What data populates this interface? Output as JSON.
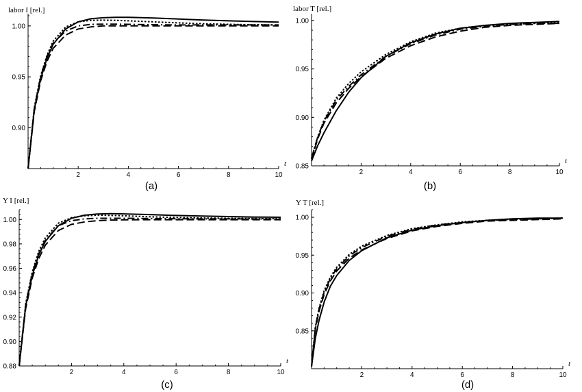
{
  "chart_data": [
    {
      "type": "line",
      "caption": "(a)",
      "ylabel": "labor  I [rel.]",
      "xlabel": "t",
      "xlim": [
        0,
        10
      ],
      "ylim": [
        0.86,
        1.012
      ],
      "xticks": [
        2,
        4,
        6,
        8,
        10
      ],
      "yticks": [
        0.9,
        0.95,
        1.0
      ],
      "ytick_labels": [
        "0.90",
        "0.95",
        "1.00"
      ],
      "x": [
        0,
        0.25,
        0.5,
        0.75,
        1,
        1.5,
        2,
        2.5,
        3,
        3.5,
        4,
        5,
        6,
        7,
        8,
        9,
        10
      ],
      "series": [
        {
          "style": "solid",
          "values": [
            0.86,
            0.918,
            0.948,
            0.968,
            0.982,
            0.997,
            1.004,
            1.007,
            1.008,
            1.0085,
            1.0085,
            1.0078,
            1.0068,
            1.0058,
            1.005,
            1.0043,
            1.0038
          ]
        },
        {
          "style": "dotted",
          "values": [
            0.86,
            0.92,
            0.951,
            0.971,
            0.985,
            0.999,
            1.004,
            1.0055,
            1.0057,
            1.0055,
            1.005,
            1.004,
            1.003,
            1.0022,
            1.0016,
            1.0012,
            1.001
          ]
        },
        {
          "style": "dashed",
          "values": [
            0.86,
            0.916,
            0.946,
            0.965,
            0.978,
            0.991,
            0.997,
            0.999,
            1.0,
            1.0,
            1.0,
            1.0,
            1.0,
            1.0,
            1.0,
            1.0,
            1.0
          ]
        },
        {
          "style": "dashdot",
          "values": [
            0.86,
            0.919,
            0.95,
            0.97,
            0.983,
            0.995,
            1.0,
            1.0015,
            1.0018,
            1.0018,
            1.0016,
            1.0012,
            1.001,
            1.001,
            1.001,
            1.001,
            1.001
          ]
        }
      ]
    },
    {
      "type": "line",
      "caption": "(b)",
      "ylabel": "labor  T [rel.]",
      "xlabel": "t",
      "xlim": [
        0,
        10
      ],
      "ylim": [
        0.85,
        1.007
      ],
      "xticks": [
        2,
        4,
        6,
        8,
        10
      ],
      "yticks": [
        0.85,
        0.9,
        0.95,
        1.0
      ],
      "ytick_labels": [
        "0.85",
        "0.90",
        "0.95",
        "1.00"
      ],
      "x": [
        0,
        0.25,
        0.5,
        1,
        1.5,
        2,
        3,
        4,
        5,
        6,
        7,
        8,
        9,
        10
      ],
      "series": [
        {
          "style": "solid",
          "values": [
            0.855,
            0.871,
            0.884,
            0.907,
            0.926,
            0.941,
            0.963,
            0.977,
            0.986,
            0.992,
            0.995,
            0.997,
            0.998,
            0.999
          ]
        },
        {
          "style": "dotted",
          "values": [
            0.858,
            0.88,
            0.897,
            0.92,
            0.935,
            0.947,
            0.965,
            0.978,
            0.987,
            0.992,
            0.995,
            0.996,
            0.997,
            0.998
          ]
        },
        {
          "style": "dashed",
          "values": [
            0.857,
            0.878,
            0.894,
            0.915,
            0.93,
            0.942,
            0.961,
            0.974,
            0.983,
            0.989,
            0.993,
            0.995,
            0.996,
            0.997
          ]
        },
        {
          "style": "dashdot",
          "values": [
            0.858,
            0.88,
            0.896,
            0.918,
            0.932,
            0.944,
            0.963,
            0.976,
            0.985,
            0.991,
            0.994,
            0.996,
            0.997,
            0.997
          ]
        }
      ]
    },
    {
      "type": "line",
      "caption": "(c)",
      "ylabel": "Y I [rel.]",
      "xlabel": "t",
      "xlim": [
        0,
        10
      ],
      "ylim": [
        0.88,
        1.008
      ],
      "xticks": [
        2,
        4,
        6,
        8,
        10
      ],
      "yticks": [
        0.88,
        0.9,
        0.92,
        0.94,
        0.96,
        0.98,
        1.0
      ],
      "ytick_labels": [
        "0.88",
        "0.90",
        "0.92",
        "0.94",
        "0.96",
        "0.98",
        "1.00"
      ],
      "x": [
        0,
        0.25,
        0.5,
        0.75,
        1,
        1.5,
        2,
        2.5,
        3,
        3.5,
        4,
        5,
        6,
        7,
        8,
        9,
        10
      ],
      "series": [
        {
          "style": "solid",
          "values": [
            0.88,
            0.929,
            0.954,
            0.971,
            0.982,
            0.995,
            1.001,
            1.0035,
            1.0045,
            1.0048,
            1.0046,
            1.004,
            1.0033,
            1.0028,
            1.0024,
            1.002,
            1.0018
          ]
        },
        {
          "style": "dotted",
          "values": [
            0.88,
            0.931,
            0.957,
            0.974,
            0.985,
            0.997,
            1.0015,
            1.003,
            1.0035,
            1.0033,
            1.003,
            1.0022,
            1.0016,
            1.0012,
            1.001,
            1.0008,
            1.0006
          ]
        },
        {
          "style": "dashed",
          "values": [
            0.88,
            0.927,
            0.952,
            0.968,
            0.979,
            0.991,
            0.996,
            0.998,
            0.999,
            0.9995,
            0.9997,
            0.9998,
            0.9998,
            0.9998,
            0.9998,
            0.9998,
            0.9998
          ]
        },
        {
          "style": "dashdot",
          "values": [
            0.88,
            0.93,
            0.956,
            0.972,
            0.983,
            0.995,
            0.999,
            1.0005,
            1.001,
            1.001,
            1.001,
            1.0008,
            1.0006,
            1.0005,
            1.0005,
            1.0004,
            1.0004
          ]
        }
      ]
    },
    {
      "type": "line",
      "caption": "(d)",
      "ylabel": "Y T [rel.]",
      "xlabel": "t",
      "xlim": [
        0,
        10
      ],
      "ylim": [
        0.8,
        1.01
      ],
      "xticks": [
        2,
        4,
        6,
        8,
        10
      ],
      "yticks": [
        0.85,
        0.9,
        0.95,
        1.0
      ],
      "ytick_labels": [
        "0.85",
        "0.90",
        "0.95",
        "1.00"
      ],
      "x": [
        0,
        0.15,
        0.3,
        0.5,
        0.75,
        1,
        1.5,
        2,
        3,
        4,
        5,
        6,
        7,
        8,
        9,
        10
      ],
      "series": [
        {
          "style": "solid",
          "values": [
            0.803,
            0.84,
            0.864,
            0.888,
            0.909,
            0.923,
            0.943,
            0.956,
            0.973,
            0.983,
            0.989,
            0.993,
            0.996,
            0.998,
            0.999,
            0.999
          ]
        },
        {
          "style": "dotted",
          "values": [
            0.803,
            0.855,
            0.88,
            0.903,
            0.921,
            0.934,
            0.951,
            0.962,
            0.976,
            0.985,
            0.99,
            0.994,
            0.996,
            0.997,
            0.998,
            0.999
          ]
        },
        {
          "style": "dashed",
          "values": [
            0.803,
            0.852,
            0.876,
            0.898,
            0.916,
            0.929,
            0.946,
            0.957,
            0.972,
            0.982,
            0.988,
            0.992,
            0.995,
            0.996,
            0.997,
            0.998
          ]
        },
        {
          "style": "dashdot",
          "values": [
            0.803,
            0.854,
            0.879,
            0.901,
            0.919,
            0.932,
            0.949,
            0.96,
            0.975,
            0.984,
            0.99,
            0.993,
            0.996,
            0.997,
            0.998,
            0.999
          ]
        }
      ]
    }
  ]
}
